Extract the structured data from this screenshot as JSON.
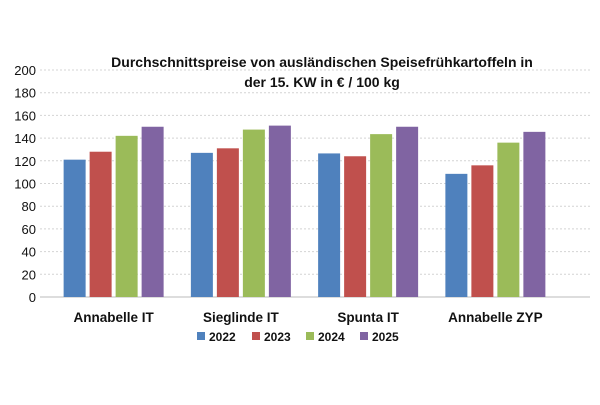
{
  "chart_data": {
    "type": "bar",
    "title_lines": [
      "Durchschnittspreise von ausländischen Speisefrühkartoffeln in",
      "der 15. KW in € / 100 kg"
    ],
    "xlabel": "",
    "ylabel": "",
    "ylim": [
      0,
      200
    ],
    "yticks": [
      "0",
      "20",
      "40",
      "60",
      "80",
      "100",
      "120",
      "140",
      "160",
      "180",
      "200"
    ],
    "grid": true,
    "legend_position": "bottom",
    "categories": [
      "Annabelle IT",
      "Sieglinde IT",
      "Spunta IT",
      "Annabelle ZYP"
    ],
    "series": [
      {
        "name": "2022",
        "color": "#4f81bd",
        "values": [
          121,
          127,
          126.5,
          108.5
        ]
      },
      {
        "name": "2023",
        "color": "#c0504d",
        "values": [
          128,
          131,
          124,
          116
        ]
      },
      {
        "name": "2024",
        "color": "#9bbb59",
        "values": [
          142,
          147.5,
          143.5,
          136
        ]
      },
      {
        "name": "2025",
        "color": "#8064a2",
        "values": [
          150,
          151,
          150,
          145.5
        ]
      }
    ]
  }
}
